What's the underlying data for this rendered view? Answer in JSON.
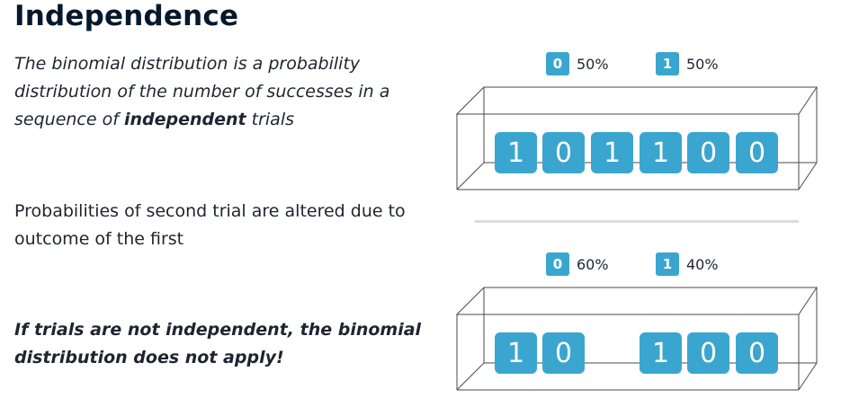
{
  "title": "Independence",
  "intro": {
    "before": "The binomial distribution is a probability distribution of the number of successes in a sequence of ",
    "bold": "independent",
    "after": " trials"
  },
  "note": "Probabilities of second trial are altered due to outcome of the first",
  "warning": "If trials are not independent, the binomial distribution does not apply!",
  "diagram_top": {
    "legend": [
      {
        "chip": "0",
        "text": "50%"
      },
      {
        "chip": "1",
        "text": "50%"
      }
    ],
    "tiles": [
      "1",
      "0",
      "1",
      "1",
      "0",
      "0"
    ]
  },
  "diagram_bottom": {
    "legend": [
      {
        "chip": "0",
        "text": "60%"
      },
      {
        "chip": "1",
        "text": "40%"
      }
    ],
    "tiles": [
      "1",
      "0",
      "",
      "1",
      "0",
      "0"
    ]
  },
  "colors": {
    "tile": "#3aa6cf",
    "box_line": "#4a4a4a",
    "divider": "#d9dce0"
  }
}
